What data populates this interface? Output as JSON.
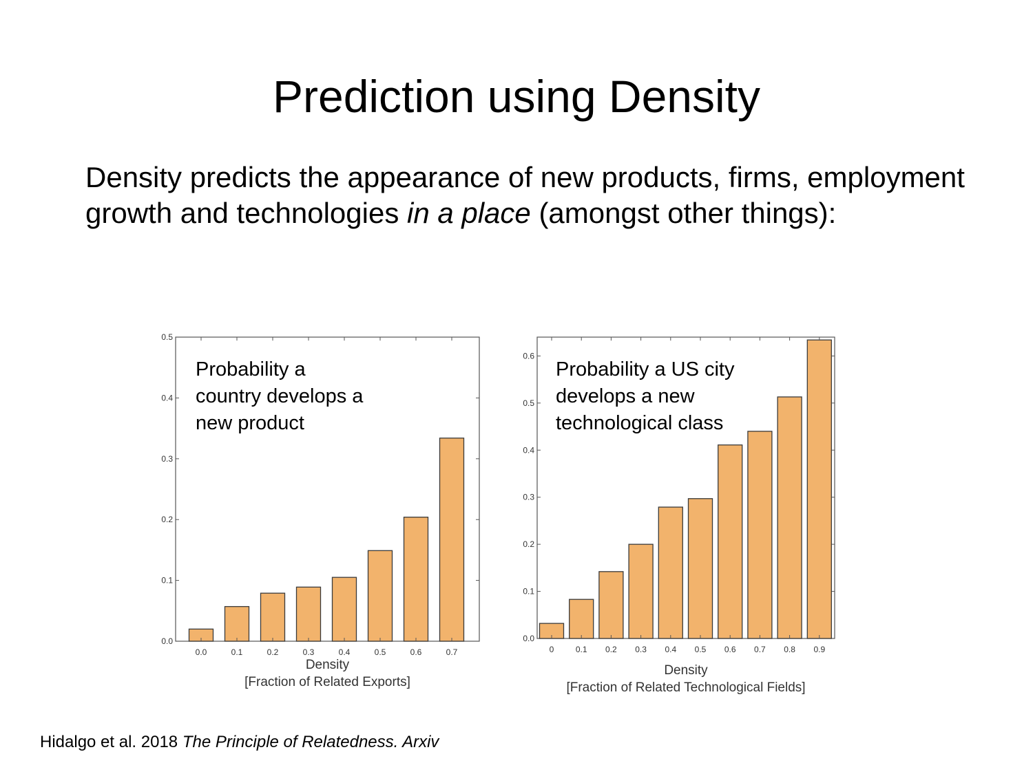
{
  "slide": {
    "title": "Prediction using Density",
    "body": {
      "part1": "Density predicts the appearance of new products, firms, employment growth and technologies ",
      "italic": "in a place",
      "part2": " (amongst other things):"
    },
    "citation": {
      "plain": "Hidalgo et al. 2018 ",
      "italic": "The Principle of Relatedness. Arxiv"
    }
  },
  "colors": {
    "bar_fill": "#f2b36c",
    "bar_stroke": "#3a3a3a",
    "frame": "#555555"
  },
  "chart_data": [
    {
      "type": "bar",
      "annotation": "Probability a\ncountry develops a\nnew product",
      "categories": [
        "0.0",
        "0.1",
        "0.2",
        "0.3",
        "0.4",
        "0.5",
        "0.6",
        "0.7"
      ],
      "values": [
        0.02,
        0.057,
        0.079,
        0.089,
        0.105,
        0.149,
        0.204,
        0.334
      ],
      "xlabel": "Density",
      "xlabel2": "[Fraction of Related Exports]",
      "ylabel": "",
      "ylim": [
        0,
        0.5
      ],
      "yticks": [
        "0.0",
        "0.1",
        "0.2",
        "0.3",
        "0.4",
        "0.5"
      ],
      "grid": false
    },
    {
      "type": "bar",
      "annotation": "Probability a US city\ndevelops a new\ntechnological class",
      "categories": [
        "0",
        "0.1",
        "0.2",
        "0.3",
        "0.4",
        "0.5",
        "0.6",
        "0.7",
        "0.8",
        "0.9"
      ],
      "values": [
        0.032,
        0.083,
        0.142,
        0.2,
        0.279,
        0.297,
        0.411,
        0.44,
        0.513,
        0.634
      ],
      "xlabel": "Density",
      "xlabel2": "[Fraction of Related Technological Fields]",
      "ylabel": "",
      "ylim": [
        0,
        0.64
      ],
      "yticks": [
        "0.0",
        "0.1",
        "0.2",
        "0.3",
        "0.4",
        "0.5",
        "0.6"
      ],
      "grid": false
    }
  ]
}
